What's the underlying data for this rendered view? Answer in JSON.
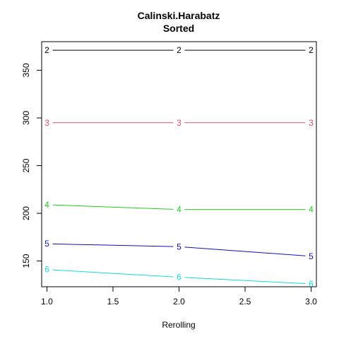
{
  "chart_data": {
    "type": "line",
    "title": "Calinski.Harabatz",
    "subtitle": "Sorted",
    "xlabel": "Rerolling",
    "ylabel": "",
    "x": [
      1.0,
      2.0,
      3.0
    ],
    "xlim": [
      0.96,
      3.04
    ],
    "ylim": [
      123,
      380
    ],
    "x_ticks": [
      "1.0",
      "1.5",
      "2.0",
      "2.5",
      "3.0"
    ],
    "x_tick_values": [
      1.0,
      1.5,
      2.0,
      2.5,
      3.0
    ],
    "y_ticks": [
      "150",
      "200",
      "250",
      "300",
      "350"
    ],
    "y_tick_values": [
      150,
      200,
      250,
      300,
      350
    ],
    "grid": false,
    "legend": "none",
    "series": [
      {
        "label": "2",
        "color": "#000000",
        "values": [
          371,
          371,
          371
        ]
      },
      {
        "label": "3",
        "color": "#DF536B",
        "values": [
          295,
          295,
          295
        ]
      },
      {
        "label": "4",
        "color": "#22CC22",
        "values": [
          209,
          204,
          204
        ]
      },
      {
        "label": "5",
        "color": "#1010BB",
        "values": [
          168,
          165,
          155
        ]
      },
      {
        "label": "6",
        "color": "#11DDDD",
        "values": [
          141,
          133,
          126
        ]
      }
    ]
  }
}
